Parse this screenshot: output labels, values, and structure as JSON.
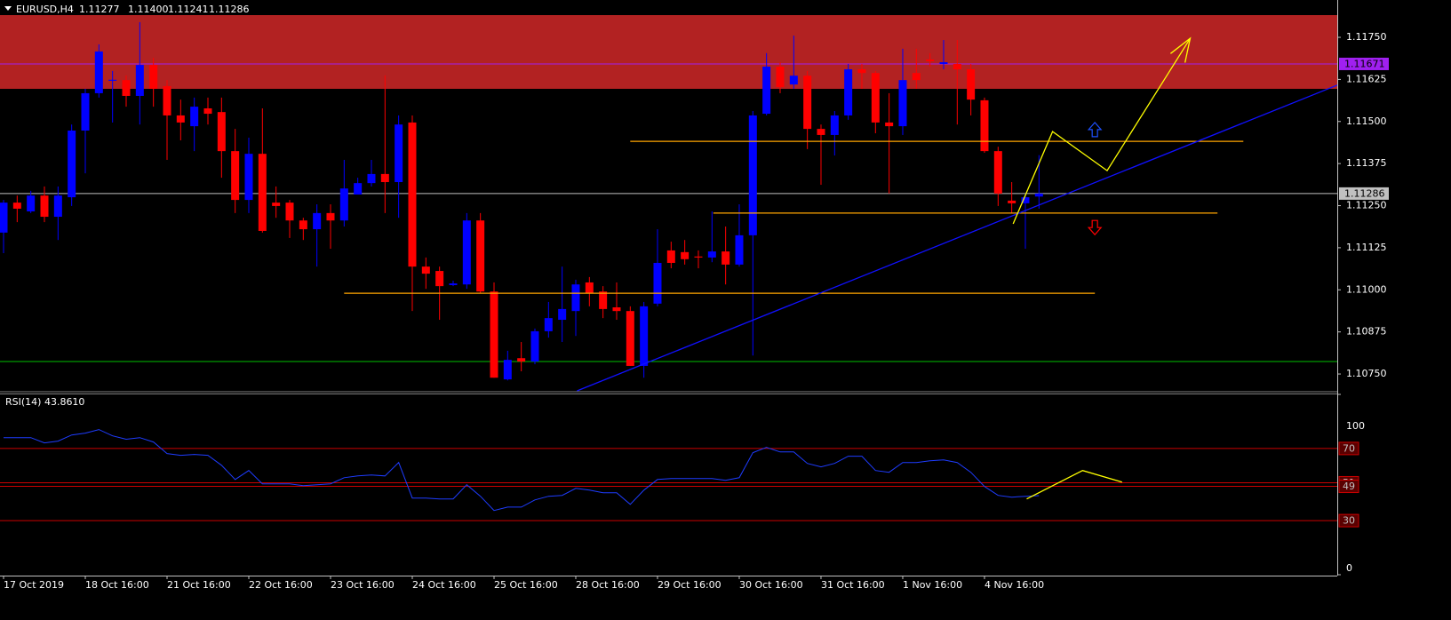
{
  "chart_data": [
    {
      "type": "candlestick",
      "title": "EURUSD,H4",
      "header_values": [
        "1.11277",
        "1.11400",
        "1.11241",
        "1.11286"
      ],
      "categories": [
        "17 Oct 2019",
        null,
        null,
        null,
        null,
        null,
        "18 Oct 16:00",
        null,
        null,
        null,
        null,
        null,
        "21 Oct 16:00",
        null,
        null,
        null,
        null,
        null,
        "22 Oct 16:00",
        null,
        null,
        null,
        null,
        null,
        "23 Oct 16:00",
        null,
        null,
        null,
        null,
        null,
        "24 Oct 16:00",
        null,
        null,
        null,
        null,
        null,
        "25 Oct 16:00",
        null,
        null,
        null,
        null,
        null,
        "28 Oct 16:00",
        null,
        null,
        null,
        null,
        null,
        "29 Oct 16:00",
        null,
        null,
        null,
        null,
        null,
        "30 Oct 16:00",
        null,
        null,
        null,
        null,
        null,
        "31 Oct 16:00",
        null,
        null,
        null,
        null,
        null,
        "1 Nov 16:00",
        null,
        null,
        null,
        null,
        null,
        "4 Nov 16:00",
        null,
        null,
        null,
        null
      ],
      "open": [
        1.1117,
        1.11259,
        1.11233,
        1.1128,
        1.11217,
        1.11275,
        1.11473,
        1.11584,
        1.11621,
        1.11623,
        1.11576,
        1.11668,
        1.11605,
        1.11518,
        1.11486,
        1.11539,
        1.11528,
        1.11412,
        1.11267,
        1.11404,
        1.11259,
        1.11259,
        1.11206,
        1.1118,
        1.11228,
        1.11206,
        1.11283,
        1.11317,
        1.11344,
        1.1132,
        1.11497,
        1.11069,
        1.11056,
        1.11014,
        1.11016,
        1.11206,
        1.10995,
        1.10734,
        1.10797,
        1.10787,
        1.10877,
        1.10911,
        1.10937,
        1.11022,
        1.10995,
        1.10948,
        1.10937,
        1.10774,
        1.10959,
        1.11117,
        1.11112,
        1.11099,
        1.11096,
        1.11114,
        1.11075,
        1.11162,
        1.11523,
        1.11663,
        1.1161,
        1.11636,
        1.11478,
        1.1146,
        1.11518,
        1.11655,
        1.11644,
        1.11497,
        1.11486,
        1.11644,
        1.11684,
        1.11671,
        1.11671,
        1.11655,
        1.11563,
        1.11412,
        1.11265,
        1.11257,
        1.11277
      ],
      "high": [
        1.11267,
        1.1128,
        1.11294,
        1.11307,
        1.11307,
        1.11491,
        1.11597,
        1.11729,
        1.1165,
        1.11637,
        1.11795,
        1.11689,
        1.11623,
        1.11565,
        1.11571,
        1.11571,
        1.11571,
        1.11478,
        1.11452,
        1.11539,
        1.11307,
        1.11267,
        1.11214,
        1.11254,
        1.11254,
        1.11386,
        1.11333,
        1.11386,
        1.11637,
        1.11518,
        1.11518,
        1.11096,
        1.11069,
        1.11027,
        1.11228,
        1.11228,
        1.11022,
        1.10819,
        1.10845,
        1.10885,
        1.10964,
        1.11069,
        1.1103,
        1.11038,
        1.11011,
        1.11022,
        1.10951,
        1.10964,
        1.1118,
        1.11143,
        1.11148,
        1.11117,
        1.11233,
        1.11188,
        1.11254,
        1.11531,
        1.11703,
        1.11676,
        1.11755,
        1.1165,
        1.11491,
        1.11531,
        1.11671,
        1.11671,
        1.1165,
        1.11584,
        1.11716,
        1.11716,
        1.11703,
        1.11742,
        1.11742,
        1.11671,
        1.11571,
        1.11425,
        1.1132,
        1.11286,
        1.114
      ],
      "low": [
        1.11109,
        1.11201,
        1.11228,
        1.11201,
        1.11148,
        1.11249,
        1.11346,
        1.11571,
        1.11497,
        1.11544,
        1.11491,
        1.11544,
        1.11386,
        1.11444,
        1.11412,
        1.11491,
        1.11333,
        1.11228,
        1.11228,
        1.1117,
        1.11214,
        1.11154,
        1.11148,
        1.11069,
        1.11122,
        1.11188,
        1.11293,
        1.11307,
        1.11228,
        1.11214,
        1.10937,
        1.11003,
        1.10911,
        1.11011,
        1.11003,
        1.1099,
        1.10739,
        1.10731,
        1.10758,
        1.10779,
        1.10858,
        1.10845,
        1.10863,
        1.10951,
        1.10916,
        1.10911,
        1.10774,
        1.10739,
        1.10951,
        1.11064,
        1.11075,
        1.11064,
        1.11082,
        1.11016,
        1.11069,
        1.10805,
        1.11518,
        1.11584,
        1.11597,
        1.11418,
        1.11312,
        1.11399,
        1.11505,
        1.11597,
        1.11465,
        1.11286,
        1.1146,
        1.11597,
        1.11663,
        1.11655,
        1.11491,
        1.11518,
        1.11407,
        1.11249,
        1.11228,
        1.11122,
        1.11241
      ],
      "close": [
        1.11259,
        1.11241,
        1.1128,
        1.11217,
        1.1128,
        1.11473,
        1.11584,
        1.11708,
        1.11624,
        1.11576,
        1.11668,
        1.11597,
        1.11518,
        1.11497,
        1.11544,
        1.11523,
        1.11412,
        1.11267,
        1.11404,
        1.11175,
        1.11249,
        1.11206,
        1.1118,
        1.11228,
        1.11206,
        1.11301,
        1.11317,
        1.11344,
        1.1132,
        1.11491,
        1.11069,
        1.11048,
        1.11011,
        1.11019,
        1.11206,
        1.10995,
        1.10739,
        1.10792,
        1.10787,
        1.10877,
        1.10916,
        1.10943,
        1.11016,
        1.1099,
        1.10943,
        1.10937,
        1.10774,
        1.10951,
        1.1108,
        1.1108,
        1.11091,
        1.11096,
        1.11114,
        1.11075,
        1.11162,
        1.11518,
        1.11663,
        1.11602,
        1.11636,
        1.11478,
        1.1146,
        1.11518,
        1.11655,
        1.11644,
        1.11497,
        1.11486,
        1.11623,
        1.11623,
        1.11679,
        1.11676,
        1.11655,
        1.11565,
        1.11412,
        1.11286,
        1.11257,
        1.11275,
        1.11286
      ],
      "up_color": "#0000ff",
      "down_color": "#ff0000",
      "ylim": [
        1.107,
        1.11816
      ],
      "yticks": [
        {
          "value": 1.1175,
          "label": "1.11750"
        },
        {
          "value": 1.11625,
          "label": "1.11625"
        },
        {
          "value": 1.115,
          "label": "1.11500"
        },
        {
          "value": 1.11375,
          "label": "1.11375"
        },
        {
          "value": 1.1125,
          "label": "1.11250"
        },
        {
          "value": 1.11125,
          "label": "1.11125"
        },
        {
          "value": 1.11,
          "label": "1.11000"
        },
        {
          "value": 1.10875,
          "label": "1.10875"
        },
        {
          "value": 1.1075,
          "label": "1.10750"
        }
      ],
      "zone": {
        "range": [
          1.11597,
          1.11816
        ],
        "color": "#b22222"
      },
      "hlines": [
        {
          "value": 1.11671,
          "color": "#a020f0",
          "show_label": true
        },
        {
          "value": 1.11286,
          "color": "#c0c0c0",
          "show_label": true
        },
        {
          "value": 1.10787,
          "color": "#00c000",
          "show_label": false
        }
      ],
      "segments": [
        {
          "x": [
            46.0,
            91.0
          ],
          "y": [
            1.11441,
            1.11441
          ],
          "color": "#ffa500"
        },
        {
          "x": [
            52.1,
            89.1
          ],
          "y": [
            1.11228,
            1.11228
          ],
          "color": "#ffa500"
        },
        {
          "x": [
            25.0,
            80.1
          ],
          "y": [
            1.1099,
            1.1099
          ],
          "color": "#ffa500"
        },
        {
          "x": [
            42.1,
            97.9
          ],
          "y": [
            1.107,
            1.11608
          ],
          "color": "#1010ff"
        },
        {
          "x": [
            74.1,
            77.0,
            81.0,
            87.1
          ],
          "y": [
            1.11196,
            1.1147,
            1.11354,
            1.11747
          ],
          "color": "#ffff00",
          "arrow": true
        }
      ],
      "arrows": [
        {
          "x": 80.1,
          "y": 1.11476,
          "dir": "up",
          "color": "#1e50ff"
        },
        {
          "x": 80.1,
          "y": 1.11185,
          "dir": "down",
          "color": "#ff0000"
        }
      ]
    },
    {
      "type": "line",
      "title": "RSI(14) 43.8610",
      "values": [
        76.0,
        76.0,
        76.0,
        73.1,
        74.1,
        77.5,
        78.5,
        80.5,
        77.0,
        75.1,
        76.0,
        73.6,
        67.2,
        66.2,
        66.7,
        66.2,
        60.7,
        52.8,
        57.8,
        50.4,
        50.4,
        50.4,
        49.4,
        49.9,
        50.4,
        53.8,
        54.8,
        55.3,
        54.8,
        62.2,
        42.5,
        42.5,
        42.0,
        42.0,
        49.9,
        43.5,
        35.6,
        37.5,
        37.5,
        41.5,
        43.5,
        44.0,
        47.9,
        46.9,
        45.4,
        45.4,
        39.0,
        46.9,
        52.8,
        53.3,
        53.3,
        53.3,
        53.3,
        52.3,
        53.8,
        67.7,
        70.6,
        68.1,
        68.1,
        61.7,
        59.8,
        61.7,
        65.7,
        65.7,
        57.8,
        56.8,
        62.2,
        62.2,
        63.2,
        63.7,
        62.2,
        56.8,
        48.9,
        44.0,
        43.0,
        43.5,
        43.861
      ],
      "color": "#1e3cff",
      "ylim": [
        0,
        100
      ],
      "yticks": [
        100,
        0
      ],
      "levels": [
        {
          "value": 70,
          "color": "#cc0000"
        },
        {
          "value": 51,
          "color": "#cc0000"
        },
        {
          "value": 49,
          "color": "#cc0000"
        },
        {
          "value": 30,
          "color": "#cc0000"
        }
      ],
      "segments": [
        {
          "x": [
            75.1,
            79.2,
            82.1
          ],
          "y": [
            42.0,
            57.8,
            51.4
          ],
          "color": "#ffff00"
        }
      ]
    }
  ]
}
